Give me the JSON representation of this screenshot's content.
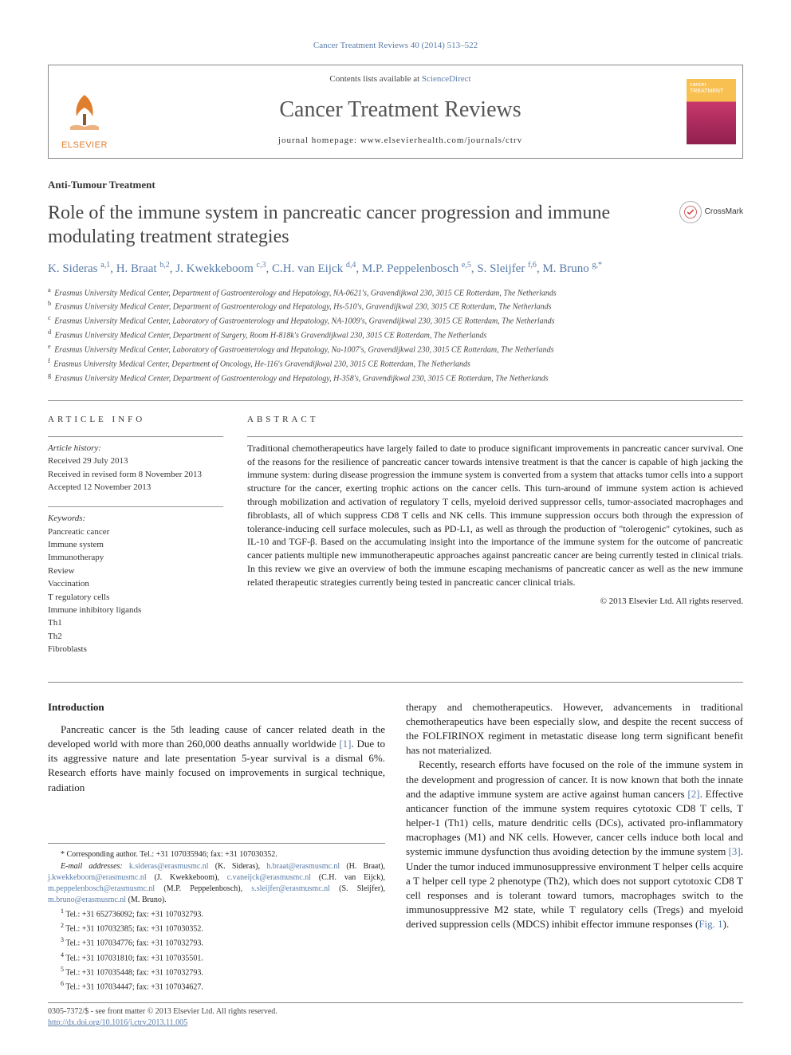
{
  "top_cite": "Cancer Treatment Reviews 40 (2014) 513–522",
  "header": {
    "contents_pre": "Contents lists available at ",
    "contents_link": "ScienceDirect",
    "journal_title": "Cancer Treatment Reviews",
    "homepage_pre": "journal homepage: ",
    "homepage_url": "www.elsevierhealth.com/journals/ctrv",
    "publisher": "ELSEVIER"
  },
  "section_label": "Anti-Tumour Treatment",
  "article_title": "Role of the immune system in pancreatic cancer progression and immune modulating treatment strategies",
  "crossmark": "CrossMark",
  "authors_html": "K. Sideras <sup>a,1</sup>, H. Braat <sup>b,2</sup>, J. Kwekkeboom <sup>c,3</sup>, C.H. van Eijck <sup>d,4</sup>, M.P. Peppelenbosch <sup>e,5</sup>, S. Sleijfer <sup>f,6</sup>, M. Bruno <sup>g,*</sup>",
  "affiliations": [
    "a Erasmus University Medical Center, Department of Gastroenterology and Hepatology, NA-0621's, Gravendijkwal 230, 3015 CE Rotterdam, The Netherlands",
    "b Erasmus University Medical Center, Department of Gastroenterology and Hepatology, Hs-510's, Gravendijkwal 230, 3015 CE Rotterdam, The Netherlands",
    "c Erasmus University Medical Center, Laboratory of Gastroenterology and Hepatology, NA-1009's, Gravendijkwal 230, 3015 CE Rotterdam, The Netherlands",
    "d Erasmus University Medical Center, Department of Surgery, Room H-818k's Gravendijkwal 230, 3015 CE Rotterdam, The Netherlands",
    "e Erasmus University Medical Center, Laboratory of Gastroenterology and Hepatology, Na-1007's, Gravendijkwal 230, 3015 CE Rotterdam, The Netherlands",
    "f Erasmus University Medical Center, Department of Oncology, He-116's Gravendijkwal 230, 3015 CE Rotterdam, The Netherlands",
    "g Erasmus University Medical Center, Department of Gastroenterology and Hepatology, H-358's, Gravendijkwal 230, 3015 CE Rotterdam, The Netherlands"
  ],
  "info": {
    "header": "ARTICLE INFO",
    "history_title": "Article history:",
    "history": [
      "Received 29 July 2013",
      "Received in revised form 8 November 2013",
      "Accepted 12 November 2013"
    ],
    "keywords_title": "Keywords:",
    "keywords": [
      "Pancreatic cancer",
      "Immune system",
      "Immunotherapy",
      "Review",
      "Vaccination",
      "T regulatory cells",
      "Immune inhibitory ligands",
      "Th1",
      "Th2",
      "Fibroblasts"
    ]
  },
  "abstract": {
    "header": "ABSTRACT",
    "text": "Traditional chemotherapeutics have largely failed to date to produce significant improvements in pancreatic cancer survival. One of the reasons for the resilience of pancreatic cancer towards intensive treatment is that the cancer is capable of high jacking the immune system: during disease progression the immune system is converted from a system that attacks tumor cells into a support structure for the cancer, exerting trophic actions on the cancer cells. This turn-around of immune system action is achieved through mobilization and activation of regulatory T cells, myeloid derived suppressor cells, tumor-associated macrophages and fibroblasts, all of which suppress CD8 T cells and NK cells. This immune suppression occurs both through the expression of tolerance-inducing cell surface molecules, such as PD-L1, as well as through the production of \"tolerogenic\" cytokines, such as IL-10 and TGF-β. Based on the accumulating insight into the importance of the immune system for the outcome of pancreatic cancer patients multiple new immunotherapeutic approaches against pancreatic cancer are being currently tested in clinical trials. In this review we give an overview of both the immune escaping mechanisms of pancreatic cancer as well as the new immune related therapeutic strategies currently being tested in pancreatic cancer clinical trials.",
    "copyright": "© 2013 Elsevier Ltd. All rights reserved."
  },
  "intro_heading": "Introduction",
  "col1_p1_pre": "Pancreatic cancer is the 5th leading cause of cancer related death in the developed world with more than 260,000 deaths annually worldwide ",
  "col1_p1_ref": "[1]",
  "col1_p1_post": ". Due to its aggressive nature and late presentation 5-year survival is a dismal 6%. Research efforts have mainly focused on improvements in surgical technique, radiation",
  "col2_p1": "therapy and chemotherapeutics. However, advancements in traditional chemotherapeutics have been especially slow, and despite the recent success of the FOLFIRINOX regiment in metastatic disease long term significant benefit has not materialized.",
  "col2_p2_pre": "Recently, research efforts have focused on the role of the immune system in the development and progression of cancer. It is now known that both the innate and the adaptive immune system are active against human cancers ",
  "col2_p2_ref1": "[2]",
  "col2_p2_mid": ". Effective anticancer function of the immune system requires cytotoxic CD8 T cells, T helper-1 (Th1) cells, mature dendritic cells (DCs), activated pro-inflammatory macrophages (M1) and NK cells. However, cancer cells induce both local and systemic immune dysfunction thus avoiding detection by the immune system ",
  "col2_p2_ref2": "[3]",
  "col2_p2_post": ". Under the tumor induced immunosuppressive environment T helper cells acquire a T helper cell type 2 phenotype (Th2), which does not support cytotoxic CD8 T cell responses and is tolerant toward tumors, macrophages switch to the immunosuppressive M2 state, while T regulatory cells (Tregs) and myeloid derived suppression cells (MDCS) inhibit effector immune responses (",
  "col2_p2_fig": "Fig. 1",
  "col2_p2_end": ").",
  "footnotes": {
    "corr": "* Corresponding author. Tel.: +31 107035946; fax: +31 107030352.",
    "emails_label": "E-mail addresses: ",
    "emails": [
      {
        "addr": "k.sideras@erasmusmc.nl",
        "who": " (K. Sideras), "
      },
      {
        "addr": "h.braat@erasmusmc.nl",
        "who": " (H. Braat), "
      },
      {
        "addr": "j.kwekkeboom@erasmusmc.nl",
        "who": " (J. Kwekkeboom), "
      },
      {
        "addr": "c.vaneijck@erasmusmc.nl",
        "who": " (C.H. van Eijck), "
      },
      {
        "addr": "m.peppelenbosch@erasmusmc.nl",
        "who": " (M.P. Peppelenbosch), "
      },
      {
        "addr": "s.sleijfer@erasmusmc.nl",
        "who": " (S. Sleijfer), "
      },
      {
        "addr": "m.bruno@erasmusmc.nl",
        "who": " (M. Bruno)."
      }
    ],
    "tels": [
      "1 Tel.: +31 652736092; fax: +31 107032793.",
      "2 Tel.: +31 107032385; fax: +31 107030352.",
      "3 Tel.: +31 107034776; fax: +31 107032793.",
      "4 Tel.: +31 107031810; fax: +31 107035501.",
      "5 Tel.: +31 107035448; fax: +31 107032793.",
      "6 Tel.: +31 107034447; fax: +31 107034627."
    ]
  },
  "bottom": {
    "line1": "0305-7372/$ - see front matter © 2013 Elsevier Ltd. All rights reserved.",
    "doi": "http://dx.doi.org/10.1016/j.ctrv.2013.11.005"
  },
  "colors": {
    "link": "#5a7ca8",
    "elsevier_orange": "#e07e2e"
  }
}
